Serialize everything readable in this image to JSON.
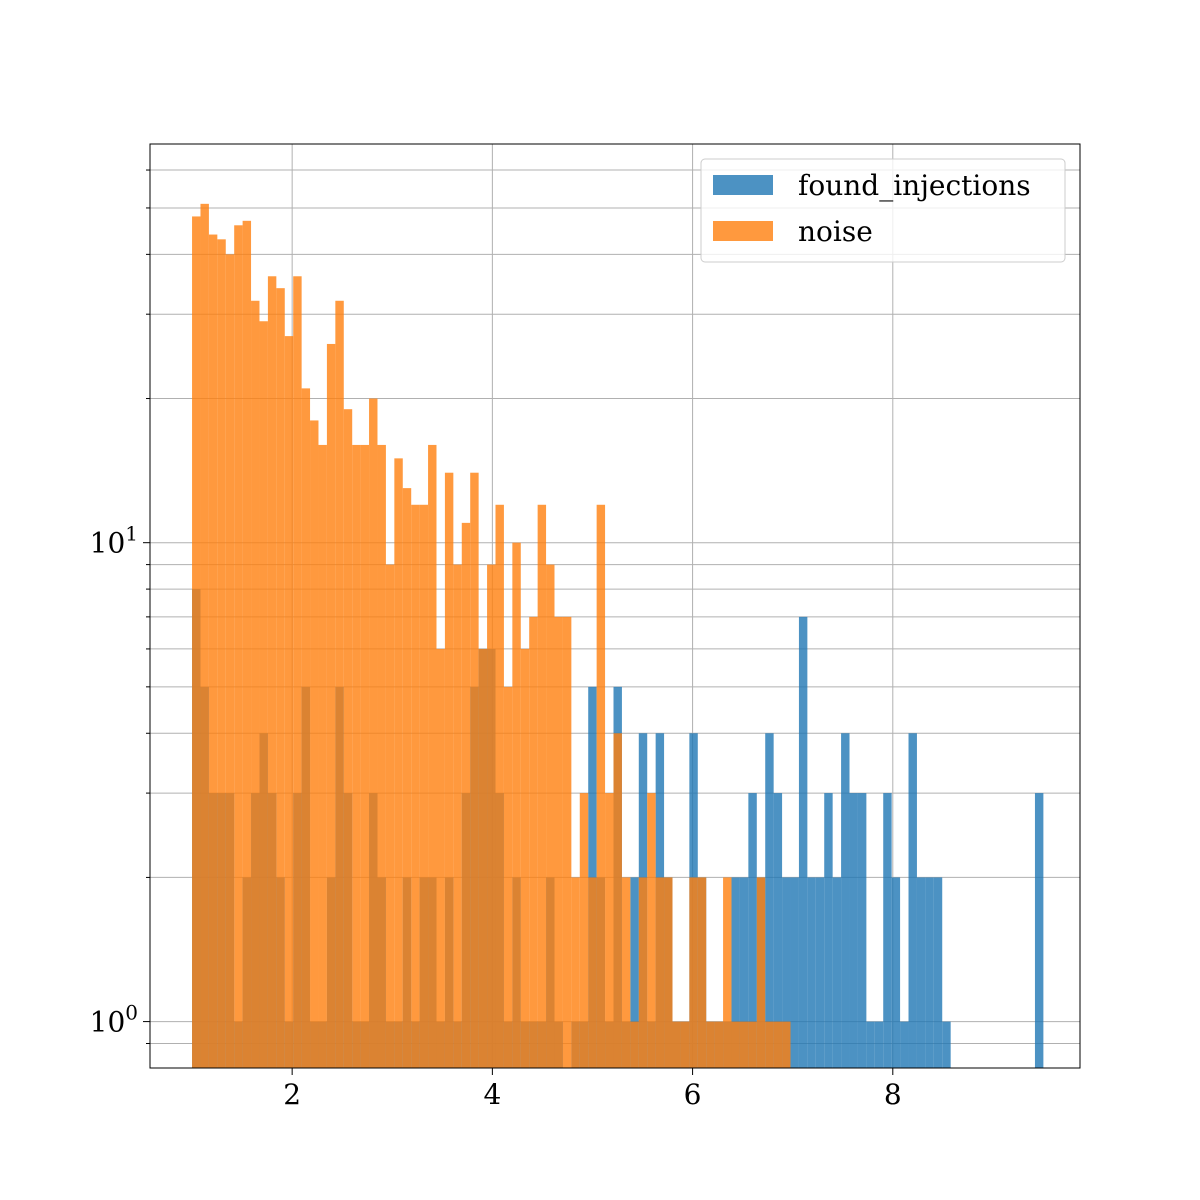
{
  "chart_data": {
    "type": "bar",
    "title": "",
    "xlabel": "",
    "ylabel": "",
    "xlim": [
      0.58,
      9.87
    ],
    "ylim": [
      0.8,
      68
    ],
    "yscale": "log",
    "grid": true,
    "legend_position": "top-right",
    "x_ticks": [
      {
        "value": 2,
        "label": "2"
      },
      {
        "value": 4,
        "label": "4"
      },
      {
        "value": 6,
        "label": "6"
      },
      {
        "value": 8,
        "label": "8"
      }
    ],
    "y_ticks": [
      {
        "value": 1,
        "base": "10",
        "exp": "0"
      },
      {
        "value": 10,
        "base": "10",
        "exp": "1"
      }
    ],
    "y_minor_ticks": [
      0.9,
      2,
      3,
      4,
      5,
      6,
      7,
      8,
      9,
      20,
      30,
      40,
      50,
      60
    ],
    "series": [
      {
        "name": "found_injections",
        "color": "#1f77b4",
        "opacity": 0.8,
        "bin_start": 1.0,
        "bin_width": 0.0842,
        "counts": [
          8,
          5,
          3,
          3,
          3,
          1,
          2,
          3,
          4,
          3,
          2,
          1,
          3,
          5,
          1,
          1,
          2,
          5,
          3,
          1,
          1,
          3,
          2,
          1,
          1,
          2,
          1,
          2,
          2,
          1,
          2,
          1,
          3,
          5,
          6,
          6,
          3,
          1,
          2,
          1,
          1,
          1,
          2,
          1,
          0,
          1,
          1,
          5,
          2,
          1,
          5,
          1,
          2,
          4,
          1,
          4,
          2,
          1,
          1,
          4,
          2,
          1,
          1,
          1,
          2,
          2,
          3,
          2,
          4,
          3,
          2,
          2,
          7,
          2,
          2,
          3,
          2,
          4,
          3,
          3,
          1,
          1,
          3,
          2,
          1,
          4,
          2,
          2,
          2,
          1,
          0,
          0,
          0,
          0,
          0,
          0,
          0,
          0,
          0,
          0,
          3
        ]
      },
      {
        "name": "noise",
        "color": "#ff7f0e",
        "opacity": 0.8,
        "bin_start": 1.0,
        "bin_width": 0.0842,
        "counts": [
          48,
          51,
          44,
          43,
          40,
          46,
          47,
          32,
          29,
          36,
          34,
          27,
          36,
          21,
          18,
          16,
          26,
          32,
          19,
          16,
          16,
          20,
          16,
          9,
          15,
          13,
          12,
          12,
          16,
          6,
          14,
          9,
          11,
          14,
          6,
          9,
          12,
          5,
          10,
          6,
          7,
          12,
          9,
          7,
          7,
          2,
          3,
          2,
          12,
          3,
          4,
          2,
          1,
          2,
          3,
          2,
          2,
          1,
          1,
          2,
          2,
          1,
          1,
          2,
          1,
          1,
          1,
          2,
          1,
          1,
          1,
          0,
          0,
          0,
          0,
          0,
          0,
          0,
          0,
          0,
          0,
          0,
          0,
          0,
          0,
          0,
          0,
          0,
          0,
          0,
          0,
          0,
          0,
          0,
          0,
          0,
          0,
          0,
          0,
          0,
          0
        ]
      }
    ]
  }
}
